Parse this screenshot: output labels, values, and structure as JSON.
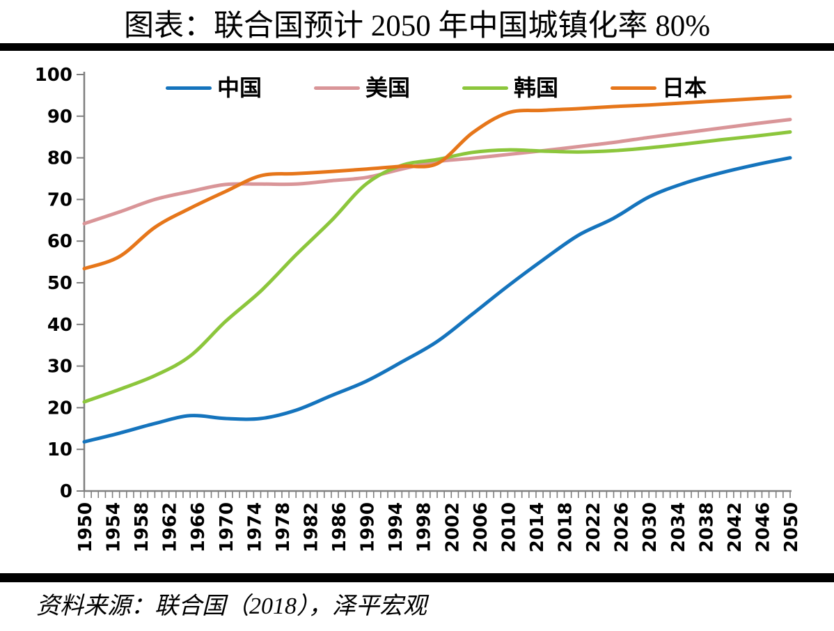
{
  "page": {
    "title": "图表：联合国预计 2050 年中国城镇化率 80%",
    "source": "资料来源：联合国（2018），泽平宏观",
    "divider_color": "#000000",
    "background_color": "#ffffff"
  },
  "chart_data": {
    "type": "line",
    "title": "图表：联合国预计 2050 年中国城镇化率 80%",
    "xlabel": "",
    "ylabel": "",
    "unit": "%",
    "grid": false,
    "legend_position": "top",
    "axis_color": "#7f7f7f",
    "ylim": [
      0,
      100
    ],
    "y_ticks": [
      0,
      10,
      20,
      30,
      40,
      50,
      60,
      70,
      80,
      90,
      100
    ],
    "x_minor_tick_step": 1,
    "x_tick_labels": [
      "1950",
      "1954",
      "1958",
      "1962",
      "1966",
      "1970",
      "1974",
      "1978",
      "1982",
      "1986",
      "1990",
      "1994",
      "1998",
      "2002",
      "2006",
      "2010",
      "2014",
      "2018",
      "2022",
      "2026",
      "2030",
      "2034",
      "2038",
      "2042",
      "2046",
      "2050"
    ],
    "x": [
      1950,
      1955,
      1960,
      1965,
      1970,
      1975,
      1980,
      1985,
      1990,
      1995,
      2000,
      2005,
      2010,
      2015,
      2020,
      2025,
      2030,
      2035,
      2040,
      2045,
      2050
    ],
    "series": [
      {
        "name": "中国",
        "color": "#1574BD",
        "values": [
          11.8,
          13.9,
          16.2,
          18.1,
          17.4,
          17.4,
          19.4,
          22.9,
          26.4,
          31.0,
          35.9,
          42.5,
          49.2,
          55.5,
          61.4,
          65.5,
          70.6,
          73.9,
          76.3,
          78.3,
          80.0
        ]
      },
      {
        "name": "美国",
        "color": "#D99598",
        "values": [
          64.2,
          67.0,
          70.0,
          71.9,
          73.6,
          73.7,
          73.7,
          74.5,
          75.3,
          77.3,
          79.1,
          79.9,
          80.8,
          81.7,
          82.7,
          83.7,
          84.9,
          86.0,
          87.1,
          88.2,
          89.2
        ]
      },
      {
        "name": "韩国",
        "color": "#8CC63C",
        "values": [
          21.4,
          24.4,
          27.7,
          32.4,
          40.7,
          48.0,
          56.7,
          64.9,
          73.8,
          78.2,
          79.6,
          81.3,
          81.9,
          81.6,
          81.4,
          81.7,
          82.4,
          83.3,
          84.3,
          85.2,
          86.2
        ]
      },
      {
        "name": "日本",
        "color": "#E6761A",
        "values": [
          53.4,
          56.3,
          63.3,
          67.9,
          71.9,
          75.7,
          76.2,
          76.7,
          77.3,
          78.0,
          78.6,
          86.0,
          90.8,
          91.4,
          91.8,
          92.3,
          92.7,
          93.2,
          93.7,
          94.2,
          94.7
        ]
      }
    ]
  }
}
